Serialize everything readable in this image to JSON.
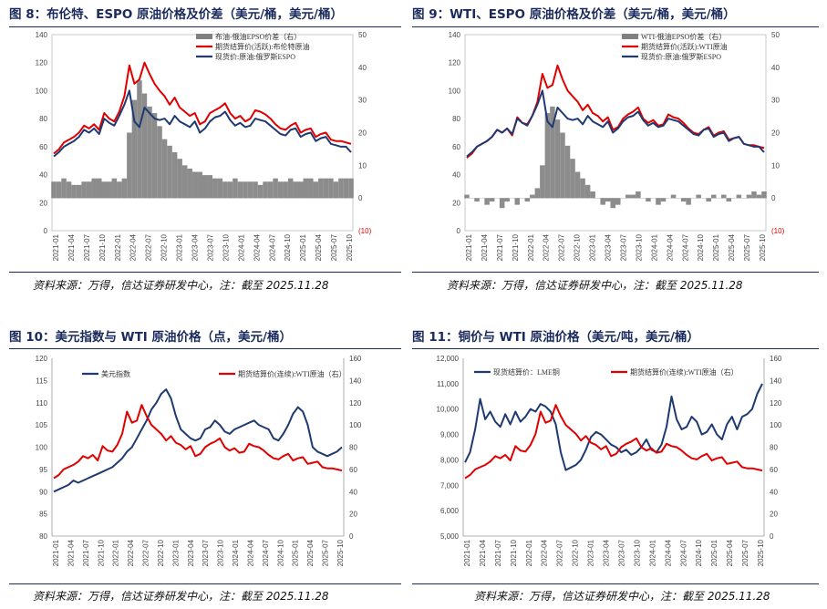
{
  "panels": [
    {
      "title": "图 8：布伦特、ESPO 原油价格及价差（美元/桶，美元/桶）",
      "source": "资料来源：万得，信达证券研发中心，注：截至 2025.11.28",
      "chart_data": {
        "type": "line",
        "title": "图 8：布伦特、ESPO 原油价格及价差（美元/桶，美元/桶）",
        "x_ticks": [
          "2021-01",
          "2021-04",
          "2021-07",
          "2021-10",
          "2022-01",
          "2022-04",
          "2022-07",
          "2022-10",
          "2023-01",
          "2023-04",
          "2023-07",
          "2023-10",
          "2024-01",
          "2024-04",
          "2024-07",
          "2024-10",
          "2025-01",
          "2025-04",
          "2025-07",
          "2025-10"
        ],
        "y_left": {
          "min": 0,
          "max": 140,
          "ticks": [
            "0",
            "20",
            "40",
            "60",
            "80",
            "100",
            "120",
            "140"
          ]
        },
        "y_right": {
          "min": -10,
          "max": 50,
          "ticks": [
            "(10)",
            "0",
            "10",
            "20",
            "30",
            "40",
            "50"
          ]
        },
        "series": [
          {
            "name": "布油-俄油EPSO价差（右）",
            "axis": "right",
            "style": "area",
            "color": "#808080",
            "values": [
              5,
              5,
              6,
              5,
              4,
              4,
              5,
              5,
              6,
              6,
              5,
              5,
              6,
              5,
              6,
              20,
              30,
              36,
              32,
              28,
              26,
              22,
              18,
              16,
              14,
              12,
              10,
              9,
              8,
              8,
              7,
              7,
              6,
              6,
              5,
              5,
              6,
              5,
              5,
              5,
              5,
              4,
              5,
              5,
              6,
              5,
              5,
              6,
              5,
              5,
              6,
              6,
              5,
              6,
              6,
              6,
              5,
              6,
              6,
              6
            ]
          },
          {
            "name": "期货结算价(活跃):布伦特原油",
            "axis": "left",
            "style": "line",
            "color": "#e00000",
            "values": [
              55,
              58,
              63,
              65,
              67,
              70,
              75,
              73,
              76,
              72,
              84,
              80,
              78,
              85,
              96,
              118,
              105,
              108,
              120,
              112,
              105,
              100,
              96,
              90,
              95,
              88,
              85,
              82,
              84,
              76,
              78,
              84,
              86,
              88,
              91,
              84,
              80,
              82,
              78,
              80,
              86,
              85,
              83,
              80,
              76,
              73,
              72,
              75,
              77,
              70,
              72,
              73,
              67,
              69,
              70,
              65,
              64,
              64,
              63,
              62
            ]
          },
          {
            "name": "现货价:原油:俄罗斯ESPO",
            "axis": "left",
            "style": "line",
            "color": "#1f3a72",
            "values": [
              53,
              56,
              60,
              62,
              64,
              67,
              72,
              70,
              73,
              69,
              80,
              77,
              75,
              82,
              90,
              100,
              78,
              74,
              88,
              84,
              80,
              79,
              80,
              76,
              82,
              78,
              76,
              74,
              78,
              70,
              73,
              78,
              81,
              82,
              85,
              79,
              75,
              77,
              74,
              75,
              80,
              79,
              78,
              75,
              72,
              69,
              68,
              72,
              73,
              67,
              69,
              70,
              64,
              66,
              67,
              62,
              61,
              60,
              60,
              56
            ]
          }
        ]
      },
      "legend": [
        "布油-俄油EPSO价差（右）",
        "期货结算价(活跃):布伦特原油",
        "现货价:原油:俄罗斯ESPO"
      ]
    },
    {
      "title": "图 9：WTI、ESPO 原油价格及价差（美元/桶，美元/桶）",
      "source": "资料来源：万得，信达证券研发中心，注：截至 2025.11.28",
      "chart_data": {
        "type": "line",
        "title": "图 9：WTI、ESPO 原油价格及价差（美元/桶，美元/桶）",
        "x_ticks": [
          "2021-01",
          "2021-04",
          "2021-07",
          "2021-10",
          "2022-01",
          "2022-04",
          "2022-07",
          "2022-10",
          "2023-01",
          "2023-04",
          "2023-07",
          "2023-10",
          "2024-01",
          "2024-04",
          "2024-07",
          "2024-10",
          "2025-01",
          "2025-04",
          "2025-07",
          "2025-10"
        ],
        "y_left": {
          "min": 0,
          "max": 140,
          "ticks": [
            "0",
            "20",
            "40",
            "60",
            "80",
            "100",
            "120",
            "140"
          ]
        },
        "y_right": {
          "min": -10,
          "max": 50,
          "ticks": [
            "(10)",
            "0",
            "10",
            "20",
            "30",
            "40",
            "50"
          ]
        },
        "series": [
          {
            "name": "WTI-俄油EPSO价差（右）",
            "axis": "right",
            "style": "area",
            "color": "#808080",
            "values": [
              1,
              0,
              -1,
              0,
              -2,
              -1,
              0,
              -3,
              -1,
              0,
              -2,
              0,
              -1,
              1,
              3,
              10,
              26,
              28,
              24,
              20,
              16,
              12,
              8,
              6,
              4,
              2,
              0,
              -2,
              -1,
              -3,
              -2,
              0,
              1,
              1,
              2,
              0,
              -1,
              0,
              -2,
              -1,
              0,
              1,
              0,
              -1,
              -2,
              0,
              1,
              0,
              -1,
              1,
              0,
              1,
              -1,
              0,
              1,
              0,
              1,
              2,
              1,
              2
            ]
          },
          {
            "name": "期货结算价(活跃):WTI原油",
            "axis": "left",
            "style": "line",
            "color": "#e00000",
            "values": [
              52,
              55,
              60,
              62,
              64,
              67,
              72,
              70,
              73,
              68,
              81,
              77,
              76,
              82,
              92,
              112,
              102,
              104,
              118,
              108,
              100,
              96,
              92,
              86,
              90,
              84,
              82,
              78,
              81,
              72,
              74,
              80,
              83,
              85,
              88,
              80,
              77,
              79,
              75,
              76,
              83,
              81,
              80,
              77,
              73,
              70,
              69,
              72,
              74,
              68,
              70,
              71,
              65,
              66,
              67,
              62,
              61,
              61,
              60,
              59
            ]
          },
          {
            "name": "现货价:原油:俄罗斯ESPO",
            "axis": "left",
            "style": "line",
            "color": "#1f3a72",
            "values": [
              53,
              56,
              60,
              62,
              64,
              67,
              72,
              70,
              73,
              69,
              80,
              77,
              75,
              82,
              90,
              100,
              78,
              74,
              88,
              84,
              80,
              79,
              80,
              76,
              82,
              78,
              76,
              74,
              78,
              70,
              73,
              78,
              81,
              82,
              85,
              79,
              75,
              77,
              74,
              75,
              80,
              79,
              78,
              75,
              72,
              69,
              68,
              72,
              73,
              67,
              69,
              70,
              64,
              66,
              67,
              62,
              61,
              60,
              60,
              56
            ]
          }
        ]
      },
      "legend": [
        "WTI-俄油EPSO价差（右）",
        "期货结算价(活跃):WTI原油",
        "现货价:原油:俄罗斯ESPO"
      ]
    },
    {
      "title": "图 10：美元指数与 WTI 原油价格（点，美元/桶）",
      "source": "资料来源：万得，信达证券研发中心，注：截至 2025.11.28",
      "chart_data": {
        "type": "line",
        "title": "图 10：美元指数与 WTI 原油价格（点，美元/桶）",
        "x_ticks": [
          "2021-01",
          "2021-04",
          "2021-07",
          "2021-10",
          "2022-01",
          "2022-04",
          "2022-07",
          "2022-10",
          "2023-01",
          "2023-04",
          "2023-07",
          "2023-10",
          "2024-01",
          "2024-04",
          "2024-07",
          "2024-10",
          "2025-01",
          "2025-04",
          "2025-07",
          "2025-10"
        ],
        "y_left": {
          "min": 80,
          "max": 120,
          "ticks": [
            "80",
            "85",
            "90",
            "95",
            "100",
            "105",
            "110",
            "115",
            "120"
          ]
        },
        "y_right": {
          "min": 0,
          "max": 160,
          "ticks": [
            "0",
            "20",
            "40",
            "60",
            "80",
            "100",
            "120",
            "140",
            "160"
          ]
        },
        "series": [
          {
            "name": "美元指数",
            "axis": "left",
            "style": "line",
            "color": "#1f3a72",
            "values": [
              90,
              90.5,
              91,
              91.5,
              92.5,
              92,
              92.5,
              93,
              93.5,
              94,
              94.5,
              95,
              95.5,
              96.5,
              97.5,
              99,
              100,
              102,
              104,
              106,
              108.5,
              110,
              112,
              113,
              111,
              107,
              104,
              103,
              102,
              101.5,
              102,
              104,
              104.5,
              106,
              105,
              103.5,
              103,
              104,
              104.5,
              105,
              105.5,
              106,
              105,
              104.5,
              104,
              102,
              101.5,
              103,
              105,
              107.5,
              109,
              108,
              105,
              100,
              99,
              98.5,
              98,
              98.5,
              99,
              100
            ]
          },
          {
            "name": "期货结算价(连续):WTI原油（右）",
            "axis": "right",
            "style": "line",
            "color": "#e00000",
            "values": [
              52,
              55,
              60,
              62,
              64,
              67,
              72,
              70,
              73,
              68,
              81,
              77,
              76,
              82,
              92,
              112,
              102,
              104,
              118,
              108,
              100,
              96,
              92,
              86,
              90,
              84,
              82,
              78,
              81,
              72,
              74,
              80,
              83,
              85,
              88,
              80,
              77,
              79,
              75,
              76,
              83,
              81,
              80,
              77,
              73,
              70,
              69,
              72,
              74,
              68,
              70,
              71,
              65,
              66,
              67,
              62,
              61,
              61,
              60,
              59
            ]
          }
        ]
      },
      "legend": [
        "美元指数",
        "期货结算价(连续):WTI原油（右）"
      ]
    },
    {
      "title": "图 11：铜价与 WTI 原油价格（美元/吨，美元/桶）",
      "source": "资料来源：万得，信达证券研发中心，注：截至 2025.11.28",
      "chart_data": {
        "type": "line",
        "title": "图 11：铜价与 WTI 原油价格（美元/吨，美元/桶）",
        "x_ticks": [
          "2021-01",
          "2021-04",
          "2021-07",
          "2021-10",
          "2022-01",
          "2022-04",
          "2022-07",
          "2022-10",
          "2023-01",
          "2023-04",
          "2023-07",
          "2023-10",
          "2024-01",
          "2024-04",
          "2024-07",
          "2024-10",
          "2025-01",
          "2025-04",
          "2025-07",
          "2025-10"
        ],
        "y_left": {
          "min": 5000,
          "max": 12000,
          "ticks": [
            "5,000",
            "6,000",
            "7,000",
            "8,000",
            "9,000",
            "10,000",
            "11,000",
            "12,000"
          ]
        },
        "y_right": {
          "min": 0,
          "max": 160,
          "ticks": [
            "0",
            "20",
            "40",
            "60",
            "80",
            "100",
            "120",
            "140",
            "160"
          ]
        },
        "series": [
          {
            "name": "现货结算价：LME铜",
            "axis": "left",
            "style": "line",
            "color": "#1f3a72",
            "values": [
              7900,
              8300,
              9200,
              10400,
              9600,
              9900,
              9500,
              9300,
              9800,
              9400,
              9900,
              9500,
              9700,
              10000,
              9900,
              10200,
              10100,
              9900,
              9400,
              8300,
              7600,
              7700,
              7800,
              8000,
              8400,
              8900,
              9100,
              9000,
              8800,
              8600,
              8500,
              8300,
              8400,
              8200,
              8300,
              8500,
              8800,
              8400,
              8300,
              8600,
              9300,
              10500,
              9600,
              9200,
              9300,
              9700,
              9500,
              9000,
              9100,
              9400,
              9000,
              8800,
              9400,
              9700,
              9200,
              9700,
              9800,
              10000,
              10600,
              11000
            ]
          },
          {
            "name": "期货结算价(连续):WTI原油（右）",
            "axis": "right",
            "style": "line",
            "color": "#e00000",
            "values": [
              52,
              55,
              60,
              62,
              64,
              67,
              72,
              70,
              73,
              68,
              81,
              77,
              76,
              82,
              92,
              112,
              102,
              104,
              118,
              108,
              100,
              96,
              92,
              86,
              90,
              84,
              82,
              78,
              81,
              72,
              74,
              80,
              83,
              85,
              88,
              80,
              77,
              79,
              75,
              76,
              83,
              81,
              80,
              77,
              73,
              70,
              69,
              72,
              74,
              68,
              70,
              71,
              65,
              66,
              67,
              62,
              61,
              61,
              60,
              59
            ]
          }
        ]
      },
      "legend": [
        "现货结算价：LME铜",
        "期货结算价(连续):WTI原油（右）"
      ]
    }
  ]
}
